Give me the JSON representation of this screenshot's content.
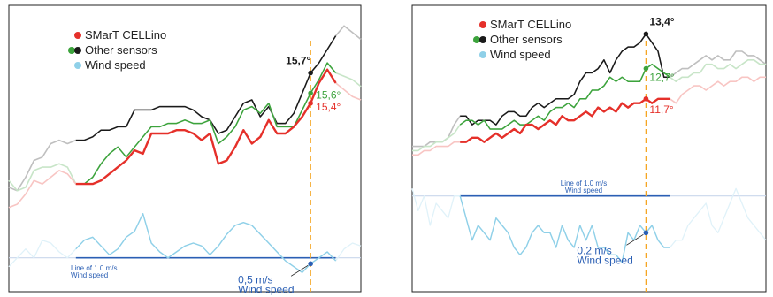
{
  "colors": {
    "smart": "#e5302a",
    "other_green": "#3ca33c",
    "other_black": "#1a1a1a",
    "wind": "#8fd0e8",
    "ref_line": "#2b5fb4",
    "marker": "#f5a623",
    "frame": "#222222"
  },
  "legend": {
    "smart": "SMarT CELLino",
    "other": "Other sensors",
    "wind": "Wind speed"
  },
  "chart_data": [
    {
      "type": "line",
      "panel": "left",
      "x": [
        0,
        1,
        2,
        3,
        4,
        5,
        6,
        7,
        8,
        9,
        10,
        11,
        12,
        13,
        14,
        15,
        16,
        17,
        18,
        19,
        20,
        21,
        22,
        23,
        24,
        25,
        26,
        27,
        28,
        29,
        30,
        31,
        32,
        33,
        34,
        35,
        36,
        37,
        38,
        39,
        40,
        41,
        42
      ],
      "series": [
        {
          "name": "SMarT CELLino",
          "color": "#e5302a",
          "highlight_range": [
            8,
            39
          ],
          "values": [
            13.2,
            13.3,
            13.6,
            14.0,
            13.9,
            14.1,
            14.3,
            14.2,
            13.9,
            13.9,
            13.9,
            14.0,
            14.2,
            14.4,
            14.6,
            14.9,
            14.8,
            15.4,
            15.4,
            15.4,
            15.5,
            15.5,
            15.4,
            15.2,
            15.4,
            14.5,
            14.6,
            15.0,
            15.5,
            15.1,
            15.3,
            15.8,
            15.4,
            15.4,
            15.6,
            15.9,
            16.3,
            16.9,
            17.3,
            16.9,
            16.7,
            16.5,
            16.4
          ]
        },
        {
          "name": "Other sensors (green)",
          "color": "#3ca33c",
          "highlight_range": [
            8,
            39
          ],
          "values": [
            14.0,
            13.7,
            13.8,
            14.3,
            14.4,
            14.4,
            14.5,
            14.4,
            13.9,
            13.9,
            14.1,
            14.5,
            14.8,
            15.0,
            14.7,
            15.0,
            15.3,
            15.6,
            15.6,
            15.7,
            15.7,
            15.8,
            15.7,
            15.7,
            15.8,
            15.1,
            15.3,
            15.6,
            16.1,
            16.2,
            16.0,
            16.3,
            15.6,
            15.6,
            15.6,
            16.1,
            16.6,
            17.0,
            17.5,
            17.2,
            17.1,
            17.0,
            16.8
          ]
        },
        {
          "name": "Other sensors (black)",
          "color": "#1a1a1a",
          "highlight_range": [
            8,
            39
          ],
          "values": [
            13.8,
            13.7,
            14.1,
            14.6,
            14.7,
            15.1,
            15.2,
            15.1,
            15.2,
            15.2,
            15.3,
            15.5,
            15.5,
            15.6,
            15.6,
            16.1,
            16.1,
            16.1,
            16.2,
            16.2,
            16.2,
            16.2,
            16.1,
            15.9,
            15.8,
            15.4,
            15.5,
            15.9,
            16.3,
            16.4,
            15.9,
            16.2,
            15.7,
            15.7,
            16.0,
            16.6,
            17.2,
            17.5,
            17.9,
            18.3,
            18.6,
            18.4,
            18.2
          ]
        },
        {
          "name": "Wind speed",
          "color": "#8fd0e8",
          "highlight_range": [
            8,
            39
          ],
          "values": [
            0.7,
            1.0,
            1.3,
            1.0,
            1.6,
            1.5,
            1.2,
            1.0,
            1.3,
            1.6,
            1.7,
            1.4,
            1.1,
            1.3,
            1.7,
            1.9,
            2.5,
            1.5,
            1.2,
            1.0,
            1.2,
            1.4,
            1.5,
            1.4,
            1.1,
            1.4,
            1.8,
            2.1,
            2.2,
            2.1,
            1.8,
            1.5,
            1.2,
            0.9,
            0.7,
            0.5,
            0.8,
            1.0,
            1.2,
            0.9,
            1.3,
            1.5,
            1.4
          ]
        }
      ],
      "reference_line": {
        "label": "Line of 1.0 m/s\nWind speed",
        "value": 1.0
      },
      "marker_x": 36,
      "annotations": [
        {
          "text": "15,7°",
          "series": "Other sensors (black)"
        },
        {
          "text": "15,6°",
          "series": "Other sensors (green)"
        },
        {
          "text": "15,4°",
          "series": "SMarT CELLino"
        },
        {
          "text": "0,5 m/s\nWind speed",
          "series": "Wind speed"
        }
      ]
    },
    {
      "type": "line",
      "panel": "right",
      "x": [
        0,
        1,
        2,
        3,
        4,
        5,
        6,
        7,
        8,
        9,
        10,
        11,
        12,
        13,
        14,
        15,
        16,
        17,
        18,
        19,
        20,
        21,
        22,
        23,
        24,
        25,
        26,
        27,
        28,
        29,
        30,
        31,
        32,
        33,
        34,
        35,
        36,
        37,
        38,
        39,
        40,
        41,
        42,
        43,
        44,
        45,
        46,
        47,
        48,
        49,
        50,
        51,
        52,
        53,
        54,
        55,
        56,
        57,
        58,
        59
      ],
      "series": [
        {
          "name": "SMarT CELLino",
          "color": "#e5302a",
          "highlight_range": [
            8,
            43
          ],
          "values": [
            10.6,
            10.6,
            10.7,
            10.7,
            10.8,
            10.8,
            10.8,
            10.9,
            10.9,
            10.9,
            11.0,
            11.0,
            10.9,
            11.0,
            11.1,
            11.0,
            11.1,
            11.2,
            11.1,
            11.3,
            11.3,
            11.2,
            11.3,
            11.4,
            11.3,
            11.5,
            11.4,
            11.4,
            11.5,
            11.6,
            11.5,
            11.7,
            11.6,
            11.7,
            11.6,
            11.8,
            11.7,
            11.8,
            11.8,
            11.9,
            11.8,
            11.9,
            11.9,
            11.9,
            11.8,
            12.0,
            12.1,
            12.2,
            12.2,
            12.1,
            12.2,
            12.3,
            12.2,
            12.3,
            12.3,
            12.4,
            12.4,
            12.3,
            12.4,
            12.4
          ]
        },
        {
          "name": "Other sensors (green)",
          "color": "#3ca33c",
          "highlight_range": [
            8,
            43
          ],
          "values": [
            10.7,
            10.7,
            10.8,
            10.8,
            10.9,
            10.9,
            11.0,
            11.1,
            11.3,
            11.4,
            11.4,
            11.3,
            11.4,
            11.2,
            11.2,
            11.2,
            11.3,
            11.4,
            11.3,
            11.3,
            11.4,
            11.5,
            11.4,
            11.6,
            11.7,
            11.7,
            11.8,
            11.7,
            11.9,
            11.9,
            12.1,
            12.1,
            12.2,
            12.4,
            12.3,
            12.4,
            12.3,
            12.3,
            12.3,
            12.6,
            12.7,
            12.6,
            12.5,
            12.4,
            12.3,
            12.4,
            12.4,
            12.5,
            12.5,
            12.7,
            12.7,
            12.6,
            12.6,
            12.7,
            12.6,
            12.7,
            12.8,
            12.8,
            12.7,
            12.7
          ]
        },
        {
          "name": "Other sensors (black)",
          "color": "#1a1a1a",
          "highlight_range": [
            8,
            43
          ],
          "values": [
            10.8,
            10.8,
            10.8,
            10.9,
            10.9,
            10.9,
            11.0,
            11.3,
            11.5,
            11.5,
            11.3,
            11.4,
            11.4,
            11.4,
            11.3,
            11.5,
            11.6,
            11.6,
            11.5,
            11.5,
            11.7,
            11.8,
            11.7,
            11.8,
            11.9,
            11.9,
            11.9,
            12.0,
            12.3,
            12.5,
            12.5,
            12.6,
            12.8,
            12.5,
            12.8,
            13.0,
            13.1,
            13.1,
            13.2,
            13.4,
            13.2,
            13.0,
            12.4,
            12.4,
            12.5,
            12.6,
            12.6,
            12.7,
            12.8,
            12.9,
            12.8,
            12.9,
            12.8,
            12.8,
            13.0,
            13.0,
            12.9,
            12.9,
            12.8,
            12.7
          ]
        },
        {
          "name": "Wind speed",
          "color": "#8fd0e8",
          "highlight_range": [
            8,
            43
          ],
          "values": [
            1.1,
            0.8,
            1.0,
            0.6,
            0.9,
            0.8,
            0.7,
            1.0,
            1.0,
            0.7,
            0.4,
            0.6,
            0.5,
            0.4,
            0.7,
            0.6,
            0.5,
            0.3,
            0.2,
            0.3,
            0.5,
            0.6,
            0.5,
            0.5,
            0.3,
            0.6,
            0.4,
            0.3,
            0.6,
            0.4,
            0.6,
            0.3,
            0.3,
            0.2,
            0.2,
            0.1,
            0.5,
            0.4,
            0.6,
            0.5,
            0.6,
            0.4,
            0.3,
            0.3,
            0.4,
            0.4,
            0.6,
            0.7,
            0.8,
            0.9,
            0.6,
            0.5,
            0.7,
            0.9,
            1.1,
            0.9,
            0.7,
            0.6,
            0.5,
            0.4
          ]
        }
      ],
      "reference_line": {
        "label": "Line of 1.0 m/s\nWind speed",
        "value": 1.0
      },
      "marker_x": 39,
      "annotations": [
        {
          "text": "13,4°",
          "series": "Other sensors (black)"
        },
        {
          "text": "12,7°",
          "series": "Other sensors (green)"
        },
        {
          "text": "11,7°",
          "series": "SMarT CELLino"
        },
        {
          "text": "0,2 m/s\nWind speed",
          "series": "Wind speed"
        }
      ]
    }
  ]
}
